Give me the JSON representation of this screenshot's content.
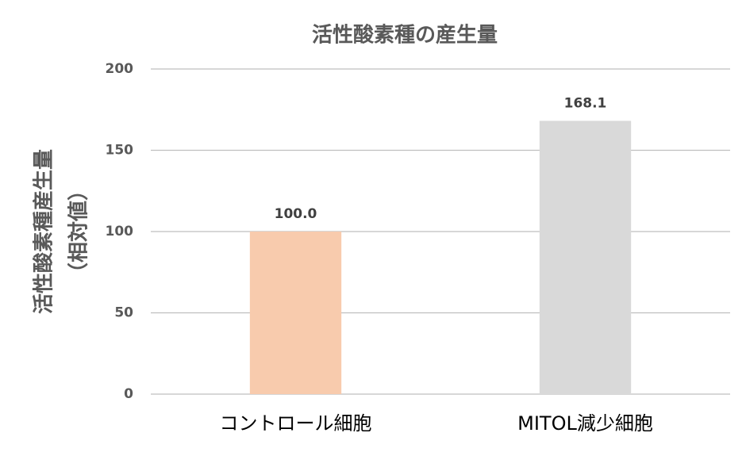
{
  "chart_data": {
    "type": "bar",
    "title": "活性酸素種の産生量",
    "ylabel": [
      "活性酸素種産生量",
      "（相対値）"
    ],
    "categories": [
      "コントロール細胞",
      "MITOL減少細胞"
    ],
    "values": [
      100,
      168.1
    ],
    "value_labels": [
      "100.0",
      "168.1"
    ],
    "colors": [
      "#f8cbad",
      "#d9d9d9"
    ],
    "ylim": [
      0,
      200
    ],
    "yticks": [
      0,
      50,
      100,
      150,
      200
    ],
    "grid": true
  }
}
